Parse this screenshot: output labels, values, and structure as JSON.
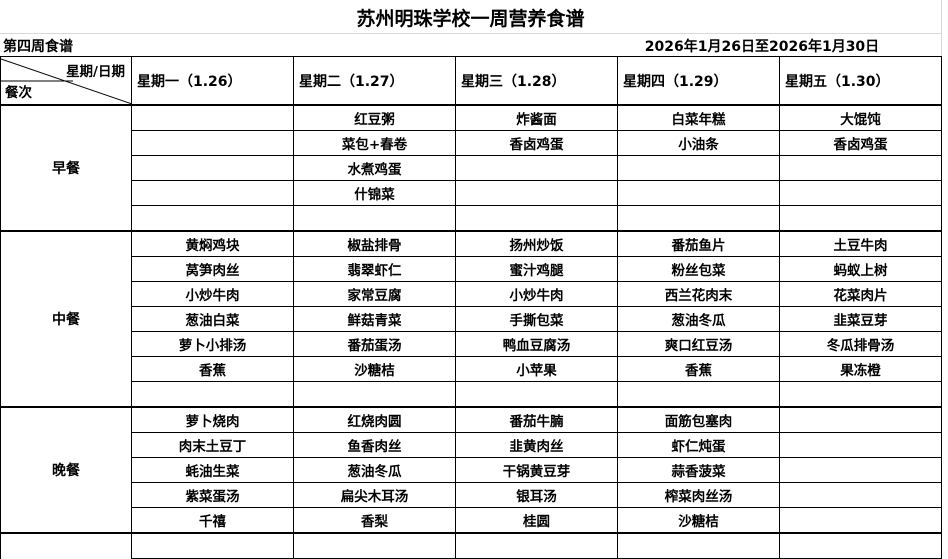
{
  "title": "苏州明珠学校一周营养食谱",
  "week_label": "第四周食谱",
  "date_range": "2026年1月26日至2026年1月30日",
  "corner": {
    "top": "星期/日期",
    "bottom": "餐次"
  },
  "days": [
    "星期一（1.26）",
    "星期二（1.27）",
    "星期三（1.28）",
    "星期四（1.29）",
    "星期五（1.30）"
  ],
  "meals": [
    {
      "name": "早餐",
      "rows": [
        [
          "",
          "红豆粥",
          "炸酱面",
          "白菜年糕",
          "大馄饨"
        ],
        [
          "",
          "菜包+春卷",
          "香卤鸡蛋",
          "小油条",
          "香卤鸡蛋"
        ],
        [
          "",
          "水煮鸡蛋",
          "",
          "",
          ""
        ],
        [
          "",
          "什锦菜",
          "",
          "",
          ""
        ],
        [
          "",
          "",
          "",
          "",
          ""
        ]
      ]
    },
    {
      "name": "中餐",
      "rows": [
        [
          "黄焖鸡块",
          "椒盐排骨",
          "扬州炒饭",
          "番茄鱼片",
          "土豆牛肉"
        ],
        [
          "莴笋肉丝",
          "翡翠虾仁",
          "蜜汁鸡腿",
          "粉丝包菜",
          "蚂蚁上树"
        ],
        [
          "小炒牛肉",
          "家常豆腐",
          "小炒牛肉",
          "西兰花肉末",
          "花菜肉片"
        ],
        [
          "葱油白菜",
          "鲜菇青菜",
          "手撕包菜",
          "葱油冬瓜",
          "韭菜豆芽"
        ],
        [
          "萝卜小排汤",
          "番茄蛋汤",
          "鸭血豆腐汤",
          "爽口红豆汤",
          "冬瓜排骨汤"
        ],
        [
          "香蕉",
          "沙糖桔",
          "小苹果",
          "香蕉",
          "果冻橙"
        ],
        [
          "",
          "",
          "",
          "",
          ""
        ]
      ]
    },
    {
      "name": "晚餐",
      "rows": [
        [
          "萝卜烧肉",
          "红烧肉圆",
          "番茄牛腩",
          "面筋包塞肉",
          ""
        ],
        [
          "肉末土豆丁",
          "鱼香肉丝",
          "韭黄肉丝",
          "虾仁炖蛋",
          ""
        ],
        [
          "蚝油生菜",
          "葱油冬瓜",
          "干锅黄豆芽",
          "蒜香菠菜",
          ""
        ],
        [
          "紫菜蛋汤",
          "扁尖木耳汤",
          "银耳汤",
          "榨菜肉丝汤",
          ""
        ],
        [
          "千禧",
          "香梨",
          "桂圆",
          "沙糖桔",
          ""
        ]
      ]
    }
  ]
}
